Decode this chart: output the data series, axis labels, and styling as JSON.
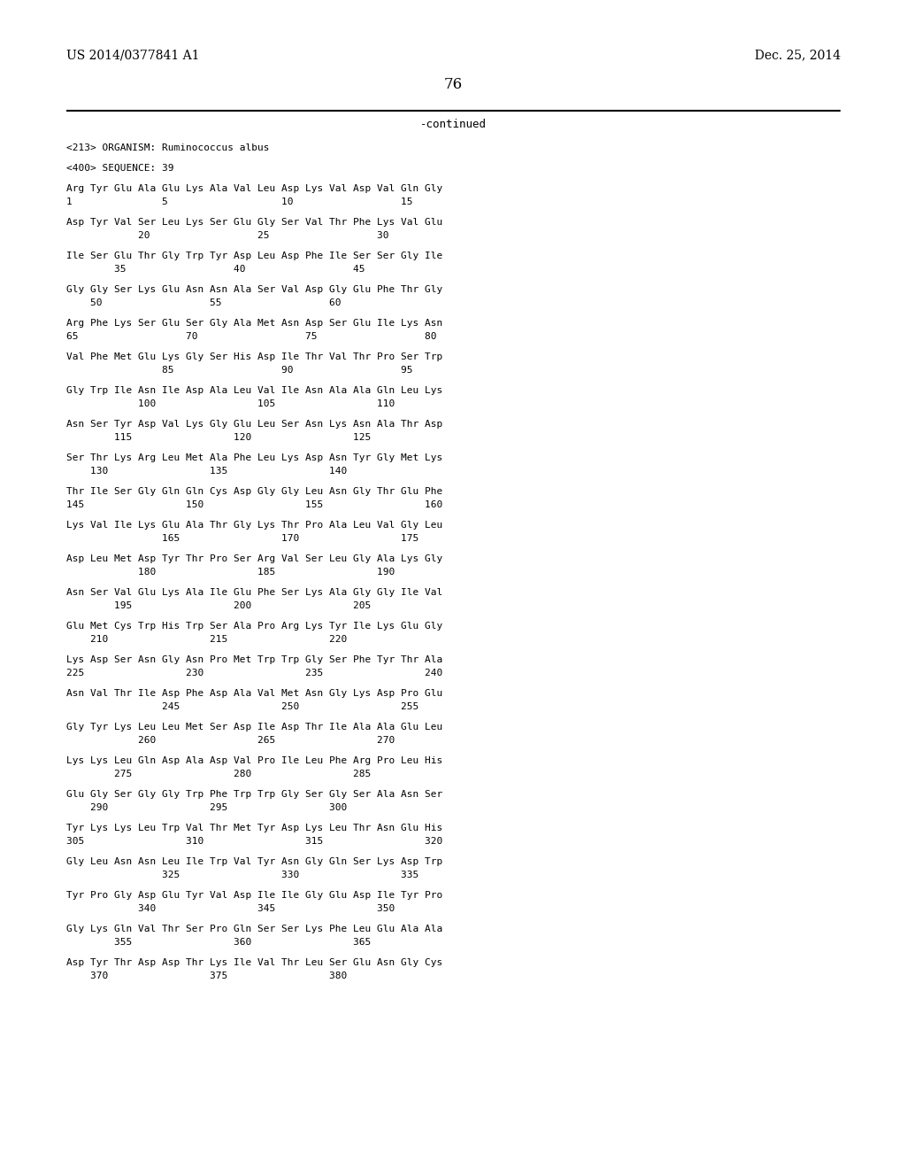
{
  "background_color": "#ffffff",
  "header_left": "US 2014/0377841 A1",
  "header_right": "Dec. 25, 2014",
  "page_number": "76",
  "continued_text": "-continued",
  "line1_sep": true,
  "body_lines": [
    "<213> ORGANISM: Ruminococcus albus",
    "",
    "<400> SEQUENCE: 39",
    "",
    "Arg Tyr Glu Ala Glu Lys Ala Val Leu Asp Lys Val Asp Val Gln Gly",
    "1               5                   10                  15",
    "",
    "Asp Tyr Val Ser Leu Lys Ser Glu Gly Ser Val Thr Phe Lys Val Glu",
    "            20                  25                  30",
    "",
    "Ile Ser Glu Thr Gly Trp Tyr Asp Leu Asp Phe Ile Ser Ser Gly Ile",
    "        35                  40                  45",
    "",
    "Gly Gly Ser Lys Glu Asn Asn Ala Ser Val Asp Gly Glu Phe Thr Gly",
    "    50                  55                  60",
    "",
    "Arg Phe Lys Ser Glu Ser Gly Ala Met Asn Asp Ser Glu Ile Lys Asn",
    "65                  70                  75                  80",
    "",
    "Val Phe Met Glu Lys Gly Ser His Asp Ile Thr Val Thr Pro Ser Trp",
    "                85                  90                  95",
    "",
    "Gly Trp Ile Asn Ile Asp Ala Leu Val Ile Asn Ala Ala Gln Leu Lys",
    "            100                 105                 110",
    "",
    "Asn Ser Tyr Asp Val Lys Gly Glu Leu Ser Asn Lys Asn Ala Thr Asp",
    "        115                 120                 125",
    "",
    "Ser Thr Lys Arg Leu Met Ala Phe Leu Lys Asp Asn Tyr Gly Met Lys",
    "    130                 135                 140",
    "",
    "Thr Ile Ser Gly Gln Gln Cys Asp Gly Gly Leu Asn Gly Thr Glu Phe",
    "145                 150                 155                 160",
    "",
    "Lys Val Ile Lys Glu Ala Thr Gly Lys Thr Pro Ala Leu Val Gly Leu",
    "                165                 170                 175",
    "",
    "Asp Leu Met Asp Tyr Thr Pro Ser Arg Val Ser Leu Gly Ala Lys Gly",
    "            180                 185                 190",
    "",
    "Asn Ser Val Glu Lys Ala Ile Glu Phe Ser Lys Ala Gly Gly Ile Val",
    "        195                 200                 205",
    "",
    "Glu Met Cys Trp His Trp Ser Ala Pro Arg Lys Tyr Ile Lys Glu Gly",
    "    210                 215                 220",
    "",
    "Lys Asp Ser Asn Gly Asn Pro Met Trp Trp Gly Ser Phe Tyr Thr Ala",
    "225                 230                 235                 240",
    "",
    "Asn Val Thr Ile Asp Phe Asp Ala Val Met Asn Gly Lys Asp Pro Glu",
    "                245                 250                 255",
    "",
    "Gly Tyr Lys Leu Leu Met Ser Asp Ile Asp Thr Ile Ala Ala Glu Leu",
    "            260                 265                 270",
    "",
    "Lys Lys Leu Gln Asp Ala Asp Val Pro Ile Leu Phe Arg Pro Leu His",
    "        275                 280                 285",
    "",
    "Glu Gly Ser Gly Gly Trp Phe Trp Trp Gly Ser Gly Ser Ala Asn Ser",
    "    290                 295                 300",
    "",
    "Tyr Lys Lys Leu Trp Val Thr Met Tyr Asp Lys Leu Thr Asn Glu His",
    "305                 310                 315                 320",
    "",
    "Gly Leu Asn Asn Leu Ile Trp Val Tyr Asn Gly Gln Ser Lys Asp Trp",
    "                325                 330                 335",
    "",
    "Tyr Pro Gly Asp Glu Tyr Val Asp Ile Ile Gly Glu Asp Ile Tyr Pro",
    "            340                 345                 350",
    "",
    "Gly Lys Gln Val Thr Ser Pro Gln Ser Ser Lys Phe Leu Glu Ala Ala",
    "        355                 360                 365",
    "",
    "Asp Tyr Thr Asp Asp Thr Lys Ile Val Thr Leu Ser Glu Asn Gly Cys",
    "    370                 375                 380"
  ]
}
